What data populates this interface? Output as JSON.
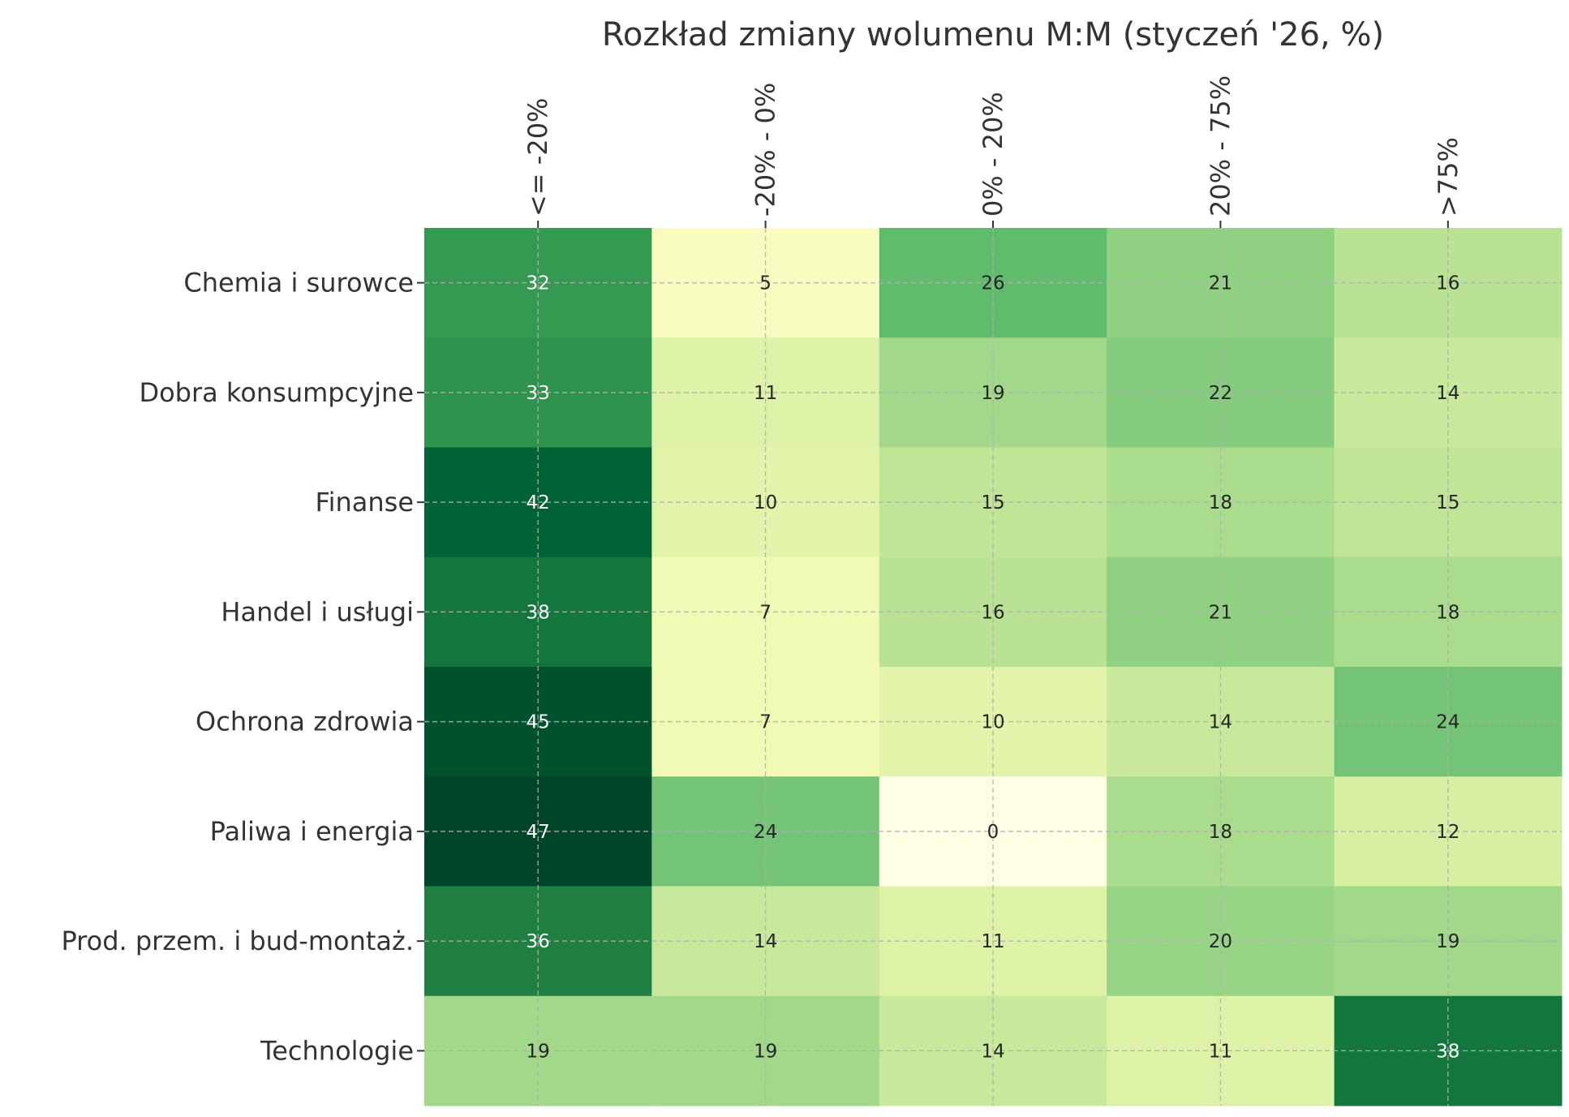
{
  "chart_data": {
    "type": "heatmap",
    "title": "Rozkład zmiany wolumenu M:M (styczeń '26, %)",
    "xlabel": "",
    "ylabel": "",
    "x_tick_position": "top",
    "x_tick_rotation": 90,
    "colormap": "YlGn",
    "color_range": [
      0,
      47
    ],
    "annotation_text_colors": {
      "light_bg": "#262626",
      "dark_bg": "#ffffff"
    },
    "grid": true,
    "columns": [
      "<= -20%",
      "-20% - 0%",
      "0% - 20%",
      "20% - 75%",
      ">75%"
    ],
    "rows": [
      "Chemia i surowce",
      "Dobra konsumpcyjne",
      "Finanse",
      "Handel i usługi",
      "Ochrona zdrowia",
      "Paliwa i energia",
      "Prod. przem. i bud-montaż.",
      "Technologie"
    ],
    "values": [
      [
        32,
        5,
        26,
        21,
        16
      ],
      [
        33,
        11,
        19,
        22,
        14
      ],
      [
        42,
        10,
        15,
        18,
        15
      ],
      [
        38,
        7,
        16,
        21,
        18
      ],
      [
        45,
        7,
        10,
        14,
        24
      ],
      [
        47,
        24,
        0,
        18,
        12
      ],
      [
        36,
        14,
        11,
        20,
        19
      ],
      [
        19,
        19,
        14,
        11,
        38
      ]
    ]
  }
}
